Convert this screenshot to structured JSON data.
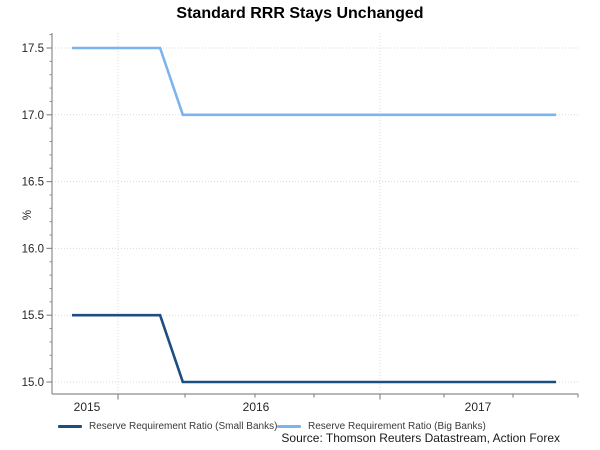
{
  "header": {
    "title": "Standard RRR Stays Unchanged"
  },
  "source_note": "Source: Thomson Reuters Datastream, Action Forex",
  "colors": {
    "small_banks_line": "#1C4E80",
    "big_banks_line": "#7CB5EE",
    "axis": "#8C8C8C",
    "gridline": "#D9D9D9",
    "tick_label": "#262626",
    "legend_text": "#3A3A3A"
  },
  "chart_data": {
    "type": "line",
    "title": "Standard RRR Stays Unchanged",
    "ylabel": "%",
    "ylim": [
      14.9,
      17.6
    ],
    "grid": "dotted horizontal and vertical gridlines",
    "legend_position": "bottom",
    "y_ticks": [
      {
        "value": 15.0,
        "label": "15.0"
      },
      {
        "value": 15.5,
        "label": "15.5"
      },
      {
        "value": 16.0,
        "label": "16.0"
      },
      {
        "value": 16.5,
        "label": "16.5"
      },
      {
        "value": 17.0,
        "label": "17.0"
      },
      {
        "value": 17.5,
        "label": "17.5"
      }
    ],
    "x_tick_labels": [
      "2015",
      "2016",
      "2017"
    ],
    "x_range_note": "late 2015 through late 2017, both series step down once in early 2016",
    "series": [
      {
        "name": "Reserve Requirement Ratio (Small Banks)",
        "color": "#1C4E80",
        "points": [
          {
            "x": 0.0,
            "y": 15.5
          },
          {
            "x": 0.182,
            "y": 15.5
          },
          {
            "x": 0.229,
            "y": 15.0
          },
          {
            "x": 1.0,
            "y": 15.0
          }
        ]
      },
      {
        "name": "Reserve Requirement Ratio (Big Banks)",
        "color": "#7CB5EE",
        "points": [
          {
            "x": 0.0,
            "y": 17.5
          },
          {
            "x": 0.182,
            "y": 17.5
          },
          {
            "x": 0.229,
            "y": 17.0
          },
          {
            "x": 1.0,
            "y": 17.0
          }
        ]
      }
    ]
  }
}
